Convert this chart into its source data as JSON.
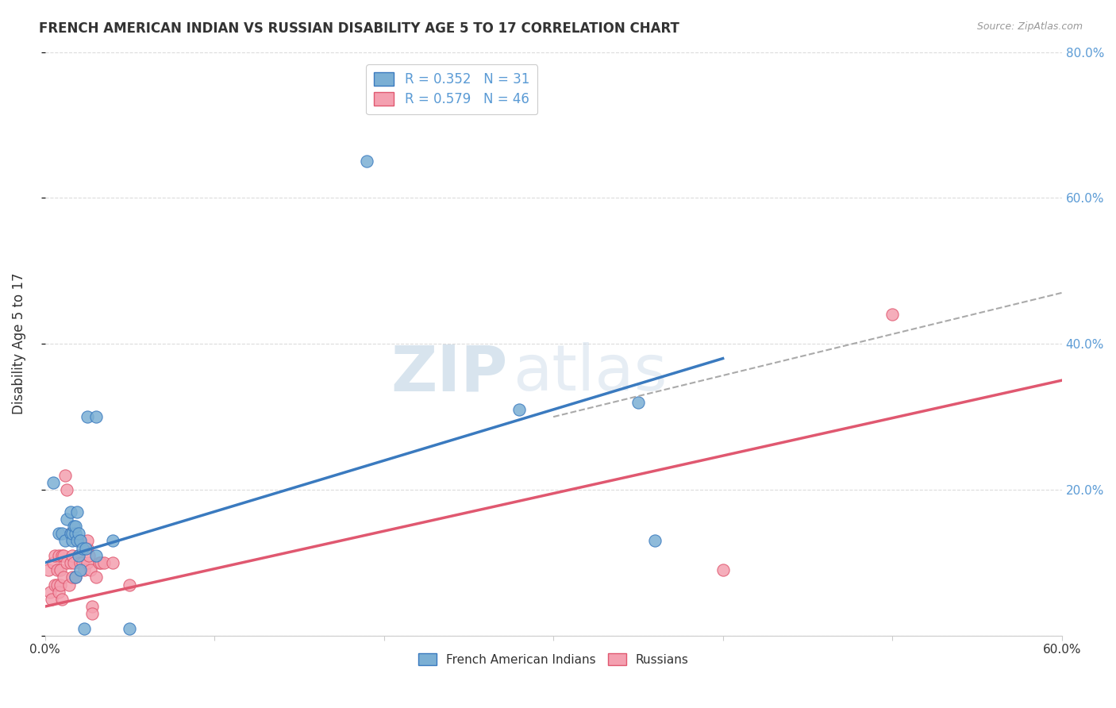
{
  "title": "FRENCH AMERICAN INDIAN VS RUSSIAN DISABILITY AGE 5 TO 17 CORRELATION CHART",
  "source": "Source: ZipAtlas.com",
  "ylabel": "Disability Age 5 to 17",
  "xlim": [
    0,
    0.6
  ],
  "ylim": [
    0,
    0.8
  ],
  "xticks": [
    0.0,
    0.1,
    0.2,
    0.3,
    0.4,
    0.5,
    0.6
  ],
  "yticks": [
    0.0,
    0.2,
    0.4,
    0.6,
    0.8
  ],
  "R_blue": 0.352,
  "N_blue": 31,
  "R_pink": 0.579,
  "N_pink": 46,
  "blue_color": "#7bafd4",
  "pink_color": "#f4a0b0",
  "blue_line_color": "#3a7abf",
  "pink_line_color": "#e05870",
  "dashed_line_color": "#aaaaaa",
  "watermark_zip": "ZIP",
  "watermark_atlas": "atlas",
  "legend_entries": [
    "French American Indians",
    "Russians"
  ],
  "blue_scatter_x": [
    0.005,
    0.008,
    0.01,
    0.012,
    0.013,
    0.015,
    0.015,
    0.016,
    0.016,
    0.017,
    0.018,
    0.018,
    0.018,
    0.019,
    0.019,
    0.02,
    0.02,
    0.021,
    0.021,
    0.022,
    0.023,
    0.024,
    0.025,
    0.03,
    0.03,
    0.04,
    0.05,
    0.19,
    0.28,
    0.35,
    0.36
  ],
  "blue_scatter_y": [
    0.21,
    0.14,
    0.14,
    0.13,
    0.16,
    0.14,
    0.17,
    0.13,
    0.14,
    0.15,
    0.14,
    0.15,
    0.08,
    0.13,
    0.17,
    0.11,
    0.14,
    0.09,
    0.13,
    0.12,
    0.01,
    0.12,
    0.3,
    0.3,
    0.11,
    0.13,
    0.01,
    0.65,
    0.31,
    0.32,
    0.13
  ],
  "pink_scatter_x": [
    0.002,
    0.003,
    0.004,
    0.005,
    0.006,
    0.006,
    0.007,
    0.007,
    0.008,
    0.008,
    0.009,
    0.009,
    0.01,
    0.01,
    0.011,
    0.011,
    0.012,
    0.013,
    0.013,
    0.014,
    0.015,
    0.015,
    0.016,
    0.016,
    0.017,
    0.018,
    0.02,
    0.02,
    0.021,
    0.022,
    0.023,
    0.025,
    0.025,
    0.025,
    0.026,
    0.027,
    0.028,
    0.028,
    0.03,
    0.032,
    0.033,
    0.035,
    0.04,
    0.05,
    0.4,
    0.5
  ],
  "pink_scatter_y": [
    0.09,
    0.06,
    0.05,
    0.1,
    0.11,
    0.07,
    0.09,
    0.07,
    0.11,
    0.06,
    0.09,
    0.07,
    0.11,
    0.05,
    0.11,
    0.08,
    0.22,
    0.2,
    0.1,
    0.07,
    0.1,
    0.14,
    0.11,
    0.08,
    0.1,
    0.08,
    0.13,
    0.11,
    0.1,
    0.1,
    0.09,
    0.1,
    0.12,
    0.13,
    0.11,
    0.09,
    0.04,
    0.03,
    0.08,
    0.1,
    0.1,
    0.1,
    0.1,
    0.07,
    0.09,
    0.44
  ],
  "blue_trend_x": [
    0.0,
    0.4
  ],
  "blue_trend_y": [
    0.1,
    0.38
  ],
  "pink_trend_x": [
    0.0,
    0.6
  ],
  "pink_trend_y": [
    0.04,
    0.35
  ],
  "dashed_trend_x": [
    0.3,
    0.6
  ],
  "dashed_trend_y": [
    0.3,
    0.47
  ]
}
